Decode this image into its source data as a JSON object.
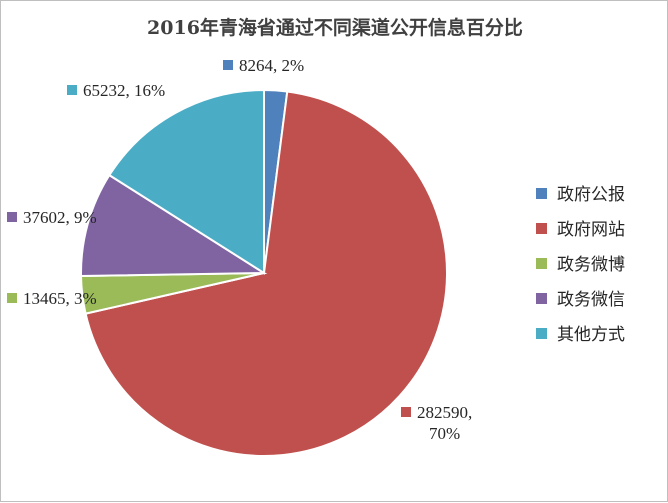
{
  "chart_data": {
    "type": "pie",
    "title": "2016年青海省通过不同渠道公开信息百分比",
    "legend_position": "right",
    "slices": [
      {
        "name": "政府公报",
        "value": 8264,
        "percent": "2%",
        "label": "8264, 2%",
        "color": "#4f81bd"
      },
      {
        "name": "政府网站",
        "value": 282590,
        "percent": "70%",
        "label_lines": [
          "282590,",
          "70%"
        ],
        "color": "#c0504d"
      },
      {
        "name": "政务微博",
        "value": 13465,
        "percent": "3%",
        "label": "13465, 3%",
        "color": "#9bbb59"
      },
      {
        "name": "政务微信",
        "value": 37602,
        "percent": "9%",
        "label": "37602, 9%",
        "color": "#8064a2"
      },
      {
        "name": "其他方式",
        "value": 65232,
        "percent": "16%",
        "label": "65232, 16%",
        "color": "#4bacc6"
      }
    ]
  }
}
